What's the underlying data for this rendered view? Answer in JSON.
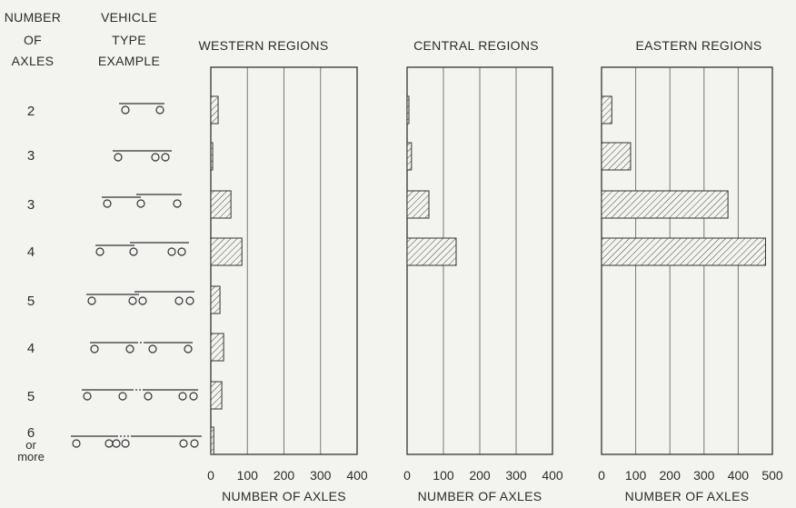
{
  "headers": {
    "number_line1": "NUMBER",
    "number_line2": "OF",
    "number_line3": "AXLES",
    "vehicle_line1": "VEHICLE",
    "vehicle_line2": "TYPE",
    "vehicle_line3": "EXAMPLE"
  },
  "rows": [
    {
      "axles": "2",
      "example": "2-axle single unit"
    },
    {
      "axles": "3",
      "example": "3-axle single unit"
    },
    {
      "axles": "3",
      "example": "2-axle tractor, 1-axle semitrailer"
    },
    {
      "axles": "4",
      "example": "2-axle tractor, 2-axle semitrailer"
    },
    {
      "axles": "5",
      "example": "3-axle tractor, 2-axle semitrailer"
    },
    {
      "axles": "4",
      "example": "tractor-semitrailer with full trailer"
    },
    {
      "axles": "5",
      "example": "tractor-semitrailer with 2-axle full trailer"
    },
    {
      "axles": "6 or more",
      "example": "multiple trailer combination"
    }
  ],
  "last_row_label": {
    "line1": "6",
    "line2": "or",
    "line3": "more"
  },
  "chart_data": {
    "type": "bar",
    "orientation": "horizontal",
    "categories": [
      "2",
      "3",
      "3",
      "4",
      "5",
      "4",
      "5",
      "6 or more"
    ],
    "series": [
      {
        "name": "WESTERN REGIONS",
        "values": [
          20,
          5,
          55,
          85,
          25,
          35,
          30,
          8
        ],
        "xlim": [
          0,
          400
        ],
        "ticks": [
          0,
          100,
          200,
          300,
          400
        ]
      },
      {
        "name": "CENTRAL REGIONS",
        "values": [
          5,
          12,
          60,
          135,
          0,
          0,
          0,
          0
        ],
        "xlim": [
          0,
          400
        ],
        "ticks": [
          0,
          100,
          200,
          300,
          400
        ]
      },
      {
        "name": "EASTERN REGIONS",
        "values": [
          30,
          85,
          370,
          480,
          0,
          0,
          0,
          0
        ],
        "xlim": [
          0,
          500
        ],
        "ticks": [
          0,
          100,
          200,
          300,
          400,
          500
        ]
      }
    ],
    "xlabel": "NUMBER OF AXLES",
    "grid": true
  }
}
